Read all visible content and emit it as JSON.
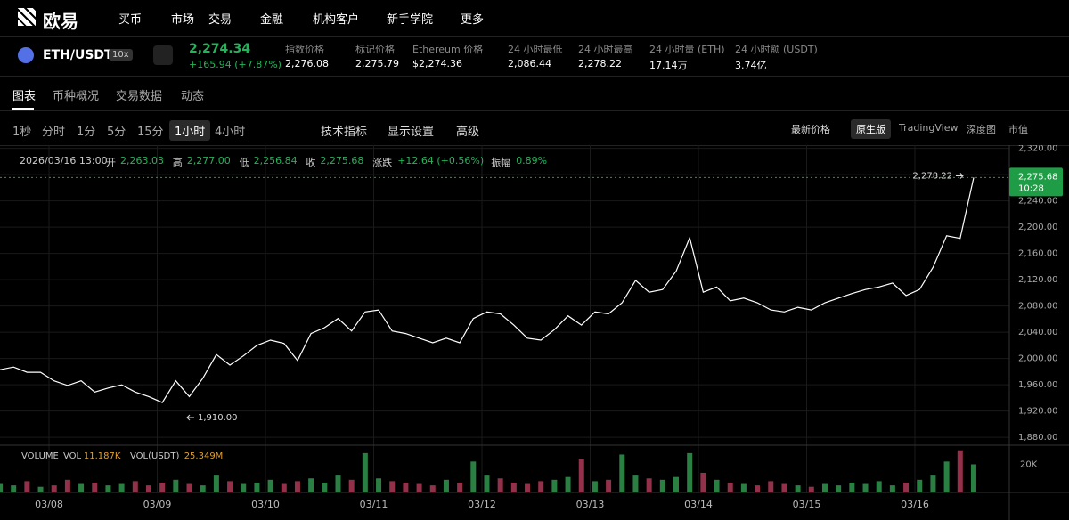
{
  "nav": {
    "logo": "欧易",
    "items": [
      "买币",
      "市场",
      "交易",
      "金融",
      "机构客户",
      "新手学院",
      "更多"
    ]
  },
  "ticker": {
    "pair": "ETH/USDT",
    "leverage": "10x",
    "price": "2,274.34",
    "change": "+165.94 (+7.87%)",
    "stats": [
      {
        "label": "指数价格",
        "value": "2,276.08"
      },
      {
        "label": "标记价格",
        "value": "2,275.79"
      },
      {
        "label": "Ethereum 价格",
        "value": "$2,274.36"
      },
      {
        "label": "24 小时最低",
        "value": "2,086.44"
      },
      {
        "label": "24 小时最高",
        "value": "2,278.22"
      },
      {
        "label": "24 小时量 (ETH)",
        "value": "17.14万"
      },
      {
        "label": "24 小时额 (USDT)",
        "value": "3.74亿"
      }
    ]
  },
  "tabs": [
    "图表",
    "币种概况",
    "交易数据",
    "动态"
  ],
  "intervals": [
    "1秒",
    "分时",
    "1分",
    "5分",
    "15分",
    "1小时",
    "4小时"
  ],
  "tools": [
    "技术指标",
    "显示设置",
    "高级"
  ],
  "price_type": "最新价格",
  "views": [
    "原生版",
    "TradingView",
    "深度图",
    "市值"
  ],
  "ohlc": {
    "time": "2026/03/16 13:00",
    "items": [
      {
        "label": "开",
        "value": "2,263.03"
      },
      {
        "label": "高",
        "value": "2,277.00"
      },
      {
        "label": "低",
        "value": "2,256.84"
      },
      {
        "label": "收",
        "value": "2,275.68"
      },
      {
        "label": "涨跌",
        "value": "+12.64 (+0.56%)"
      },
      {
        "label": "振幅",
        "value": "0.89%"
      }
    ]
  },
  "volume_legend": {
    "title": "VOLUME",
    "items": [
      {
        "label": "VOL",
        "value": "11.187K"
      },
      {
        "label": "VOL(USDT)",
        "value": "25.349M"
      }
    ]
  },
  "chart_data": [
    {
      "type": "line",
      "color": "#ffffff",
      "ylim": [
        1868,
        2325
      ],
      "grid": true,
      "values": [
        1983,
        1987,
        1979,
        1979,
        1966,
        1959,
        1966,
        1949,
        1955,
        1960,
        1949,
        1942,
        1933,
        1966,
        1942,
        1970,
        2006,
        1990,
        2004,
        2020,
        2028,
        2023,
        1997,
        2038,
        2047,
        2061,
        2042,
        2071,
        2074,
        2042,
        2038,
        2031,
        2024,
        2031,
        2024,
        2061,
        2071,
        2068,
        2051,
        2031,
        2028,
        2044,
        2065,
        2051,
        2071,
        2068,
        2085,
        2119,
        2101,
        2105,
        2133,
        2184,
        2101,
        2109,
        2088,
        2092,
        2085,
        2074,
        2071,
        2078,
        2074,
        2085,
        2092,
        2099,
        2105,
        2109,
        2115,
        2096,
        2105,
        2139,
        2187,
        2183,
        2275.68
      ],
      "yticks": [
        {
          "value": 1880,
          "label": "1,880.00"
        },
        {
          "value": 1920,
          "label": "1,920.00"
        },
        {
          "value": 1960,
          "label": "1,960.00"
        },
        {
          "value": 2000,
          "label": "2,000.00"
        },
        {
          "value": 2040,
          "label": "2,040.00"
        },
        {
          "value": 2080,
          "label": "2,080.00"
        },
        {
          "value": 2120,
          "label": "2,120.00"
        },
        {
          "value": 2160,
          "label": "2,160.00"
        },
        {
          "value": 2200,
          "label": "2,200.00"
        },
        {
          "value": 2240,
          "label": "2,240.00"
        },
        {
          "value": 2280,
          "label": "2,280.00"
        },
        {
          "value": 2320,
          "label": "2,320.00"
        }
      ],
      "x_labels": [
        "03/08",
        "03/09",
        "03/10",
        "03/11",
        "03/12",
        "03/13",
        "03/14",
        "03/15",
        "03/16"
      ],
      "high": {
        "value": 2278.22,
        "label": "2,278.22"
      },
      "low": {
        "value": 1910,
        "label": "1,910.00"
      },
      "last": {
        "value": 2275.68,
        "label": "2,275.68",
        "time": "10:28"
      },
      "last_color": "#1f9d46"
    },
    {
      "type": "bar",
      "ylim": [
        0,
        33
      ],
      "up_color": "#2a7f43",
      "down_color": "#93304a",
      "values": [
        6,
        5,
        8,
        4,
        5,
        9,
        6,
        7,
        5,
        6,
        8,
        5,
        7,
        9,
        6,
        5,
        12,
        8,
        6,
        7,
        9,
        6,
        8,
        10,
        7,
        12,
        9,
        28,
        10,
        8,
        7,
        6,
        5,
        9,
        7,
        22,
        12,
        10,
        7,
        6,
        8,
        9,
        11,
        24,
        8,
        9,
        27,
        12,
        10,
        9,
        11,
        28,
        14,
        9,
        7,
        6,
        5,
        8,
        6,
        5,
        4,
        6,
        5,
        7,
        6,
        8,
        5,
        7,
        9,
        12,
        22,
        30,
        20
      ],
      "yticks": [
        {
          "value": 20,
          "label": "20K"
        }
      ]
    }
  ]
}
